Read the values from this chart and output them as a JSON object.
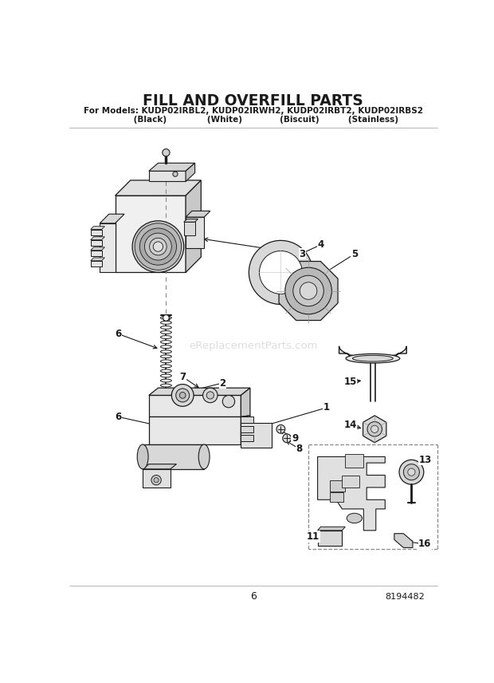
{
  "title": "FILL AND OVERFILL PARTS",
  "subtitle1": "For Models: KUDP02IRBL2, KUDP02IRWH2, KUDP02IRBT2, KUDP02IRBS2",
  "subtitle2": "         (Black)              (White)             (Biscuit)          (Stainless)",
  "watermark": "eReplacementParts.com",
  "page_number": "6",
  "part_number": "8194482",
  "bg": "#ffffff",
  "lc": "#1a1a1a",
  "gray1": "#e8e8e8",
  "gray2": "#d0d0d0",
  "gray3": "#b0b0b0",
  "watermark_color": "#cccccc"
}
